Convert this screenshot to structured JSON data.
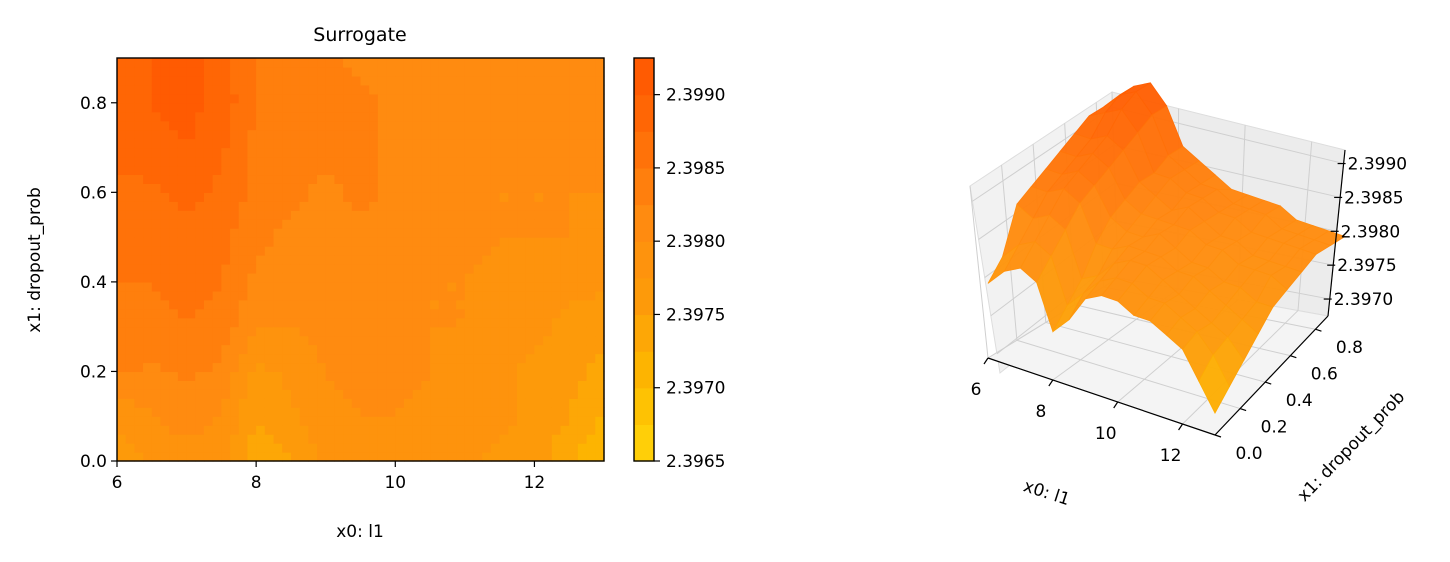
{
  "chart_data": [
    {
      "type": "heatmap",
      "title": "Surrogate",
      "xlabel": "x0: l1",
      "ylabel": "x1: dropout_prob",
      "xlim": [
        6,
        13
      ],
      "ylim": [
        0,
        0.9
      ],
      "xticks": [
        6,
        8,
        10,
        12
      ],
      "xtick_labels": [
        "6",
        "8",
        "10",
        "12"
      ],
      "yticks": [
        0.0,
        0.2,
        0.4,
        0.6,
        0.8
      ],
      "ytick_labels": [
        "0.0",
        "0.2",
        "0.4",
        "0.6",
        "0.8"
      ],
      "colorbar": {
        "ticks": [
          2.3965,
          2.397,
          2.3975,
          2.398,
          2.3985,
          2.399
        ],
        "tick_labels": [
          "2.3965",
          "2.3970",
          "2.3975",
          "2.3980",
          "2.3985",
          "2.3990"
        ],
        "vmin": 2.3965,
        "vmax": 2.39925,
        "colors": [
          "#ffd60a",
          "#fdb800",
          "#fd9b0a",
          "#ff8a10",
          "#ff6e08",
          "#ff5500"
        ]
      },
      "x": [
        6,
        6.5,
        7,
        7.5,
        8,
        8.5,
        9,
        9.5,
        10,
        10.5,
        11,
        11.5,
        12,
        12.5,
        13
      ],
      "y": [
        0,
        0.1,
        0.2,
        0.3,
        0.4,
        0.5,
        0.6,
        0.7,
        0.8,
        0.9
      ],
      "z": [
        [
          2.3976,
          2.3978,
          2.3979,
          2.3978,
          2.3973,
          2.3975,
          2.3978,
          2.3979,
          2.3979,
          2.3978,
          2.3978,
          2.3977,
          2.3976,
          2.3973,
          2.397
        ],
        [
          2.3978,
          2.398,
          2.3981,
          2.398,
          2.3975,
          2.3977,
          2.3979,
          2.398,
          2.398,
          2.3979,
          2.3979,
          2.3978,
          2.3977,
          2.3975,
          2.3972
        ],
        [
          2.3983,
          2.3982,
          2.3983,
          2.3982,
          2.3977,
          2.3978,
          2.398,
          2.3981,
          2.3981,
          2.398,
          2.3979,
          2.3978,
          2.3977,
          2.3976,
          2.3974
        ],
        [
          2.3984,
          2.3984,
          2.3985,
          2.3984,
          2.398,
          2.398,
          2.3981,
          2.3981,
          2.3981,
          2.398,
          2.398,
          2.3979,
          2.3978,
          2.3977,
          2.3976
        ],
        [
          2.3985,
          2.3985,
          2.3986,
          2.3985,
          2.3982,
          2.3981,
          2.3981,
          2.3982,
          2.3981,
          2.398,
          2.398,
          2.3979,
          2.3979,
          2.3978,
          2.3978
        ],
        [
          2.3986,
          2.3986,
          2.3987,
          2.3986,
          2.3983,
          2.3982,
          2.3982,
          2.3982,
          2.3982,
          2.3981,
          2.3981,
          2.398,
          2.398,
          2.398,
          2.3979
        ],
        [
          2.3987,
          2.3987,
          2.3988,
          2.3987,
          2.3984,
          2.3983,
          2.3982,
          2.3983,
          2.3982,
          2.3981,
          2.3981,
          2.398,
          2.398,
          2.398,
          2.398
        ],
        [
          2.3988,
          2.3989,
          2.399,
          2.3988,
          2.3984,
          2.3984,
          2.3983,
          2.3983,
          2.3982,
          2.3982,
          2.3981,
          2.3981,
          2.3981,
          2.3981,
          2.3981
        ],
        [
          2.3988,
          2.399,
          2.3991,
          2.3989,
          2.3985,
          2.3984,
          2.3983,
          2.3983,
          2.3982,
          2.3982,
          2.3982,
          2.3981,
          2.3981,
          2.3981,
          2.3981
        ],
        [
          2.3988,
          2.399,
          2.3991,
          2.3989,
          2.3985,
          2.3984,
          2.3983,
          2.3982,
          2.3982,
          2.3982,
          2.3982,
          2.3981,
          2.3981,
          2.3981,
          2.3981
        ]
      ]
    },
    {
      "type": "surface3d",
      "xlabel": "x0: l1",
      "ylabel": "x1: dropout_prob",
      "xticks": [
        6,
        8,
        10,
        12
      ],
      "xtick_labels": [
        "6",
        "8",
        "10",
        "12"
      ],
      "yticks": [
        0.0,
        0.2,
        0.4,
        0.6,
        0.8
      ],
      "ytick_labels": [
        "0.0",
        "0.2",
        "0.4",
        "0.6",
        "0.8"
      ],
      "zticks": [
        2.397,
        2.3975,
        2.398,
        2.3985,
        2.399
      ],
      "ztick_labels": [
        "2.3970",
        "2.3975",
        "2.3980",
        "2.3985",
        "2.3990"
      ],
      "grid": true,
      "surface_source": "same x / y / z grid as the contour plot"
    }
  ]
}
